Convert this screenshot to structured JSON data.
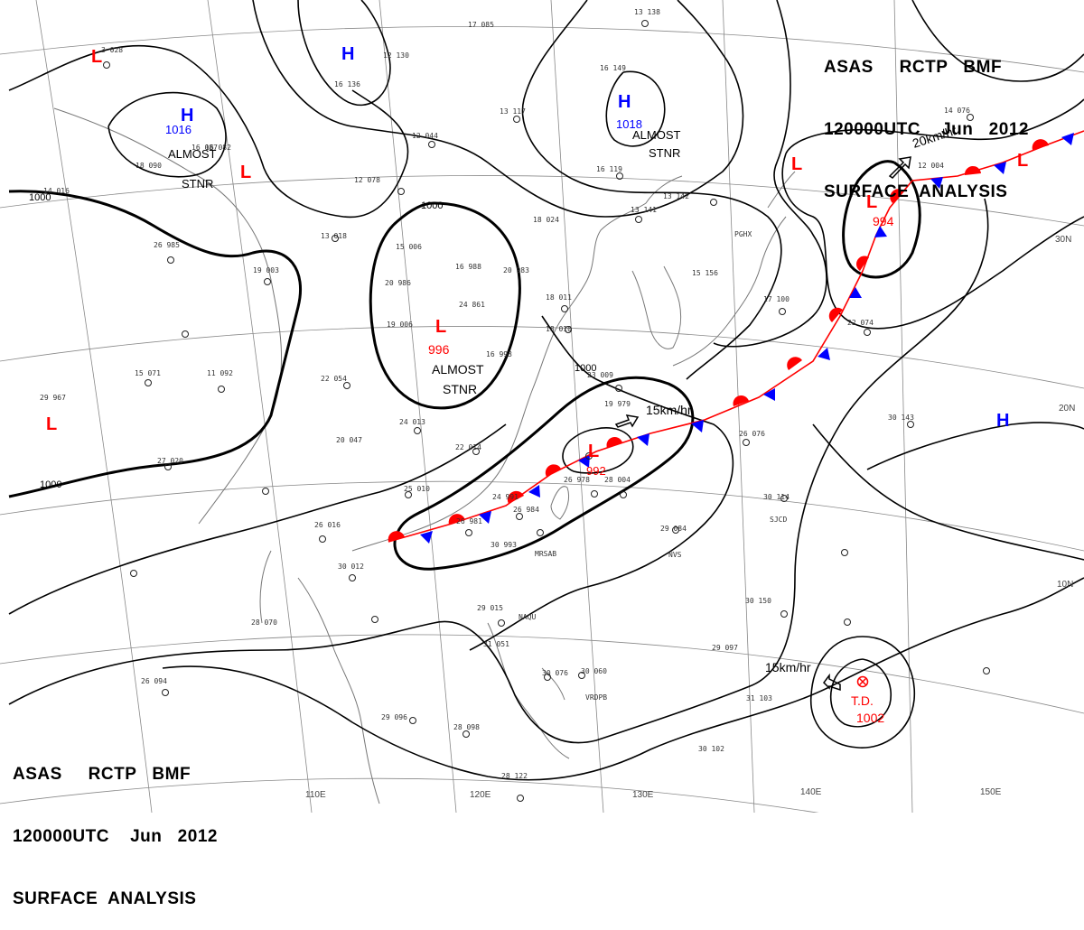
{
  "header": {
    "top": {
      "line1": "ASAS     RCTP   BMF",
      "line2": "120000UTC    Jun   2012",
      "line3": "SURFACE  ANALYSIS"
    },
    "bottom": {
      "line1": "ASAS     RCTP   BMF",
      "line2": "120000UTC    Jun   2012",
      "line3": "SURFACE  ANALYSIS"
    }
  },
  "colors": {
    "low": "#ff0000",
    "high": "#0000ff",
    "isobar": "#000000",
    "grid": "#888888",
    "coast": "#777777",
    "warm_front": "#ff0000",
    "cold_front": "#0000ff"
  },
  "isobar_labels": [
    "1000",
    "1000",
    "1000",
    "1000"
  ],
  "pressure_centers": [
    {
      "type": "L",
      "value": ""
    },
    {
      "type": "H",
      "value": "1016",
      "note": "ALMOST STNR"
    },
    {
      "type": "H",
      "value": ""
    },
    {
      "type": "L",
      "value": ""
    },
    {
      "type": "H",
      "value": "1018",
      "note": "ALMOST STNR"
    },
    {
      "type": "L",
      "value": "996",
      "note": "ALMOST STNR"
    },
    {
      "type": "L",
      "value": ""
    },
    {
      "type": "L",
      "value": ""
    },
    {
      "type": "L",
      "value": "994"
    },
    {
      "type": "L",
      "value": ""
    },
    {
      "type": "L",
      "value": "992"
    },
    {
      "type": "H",
      "value": ""
    },
    {
      "type": "TD",
      "value": "1002",
      "note": "T.D."
    }
  ],
  "motion_labels": [
    "20km/hr",
    "15km/hr",
    "15km/hr"
  ],
  "longitude_labels": [
    "110E",
    "120E",
    "130E",
    "140E",
    "150E"
  ],
  "latitude_labels": [
    "30N",
    "20N",
    "10N"
  ],
  "station_labels": [
    "PGHX",
    "SJCD",
    "NVS",
    "VRDPB",
    "NAQU",
    "MRSAB"
  ],
  "station_obs": [
    "3 028",
    "16 087",
    "18 090",
    "14 016",
    "26 985",
    "19 003",
    "13 018",
    "15 006",
    "20 986",
    "16 988",
    "20 983",
    "24 861",
    "19 006",
    "22 054",
    "24 013",
    "20 047",
    "22 014",
    "25 010",
    "26 016",
    "30 012",
    "28 070",
    "26 094",
    "29 096",
    "28 098",
    "28 122",
    "29 015",
    "31 051",
    "30 060",
    "30 076",
    "18 011",
    "18 010",
    "16 993",
    "24 991",
    "26 981",
    "26 984",
    "30 993",
    "26 978",
    "28 004",
    "23 009",
    "19 979",
    "26 076",
    "30 114",
    "29 084",
    "30 150",
    "29 097",
    "31 103",
    "30 102",
    "30 143",
    "22 074",
    "17 100",
    "17 085",
    "13 138",
    "16 149",
    "13 117",
    "12 044",
    "12 078",
    "16 119",
    "13 142",
    "13 141",
    "18 024",
    "15 156",
    "14 076",
    "12 004",
    "27 020",
    "29 967",
    "11 092",
    "15 071",
    "16 136",
    "12 130",
    "16 082"
  ]
}
